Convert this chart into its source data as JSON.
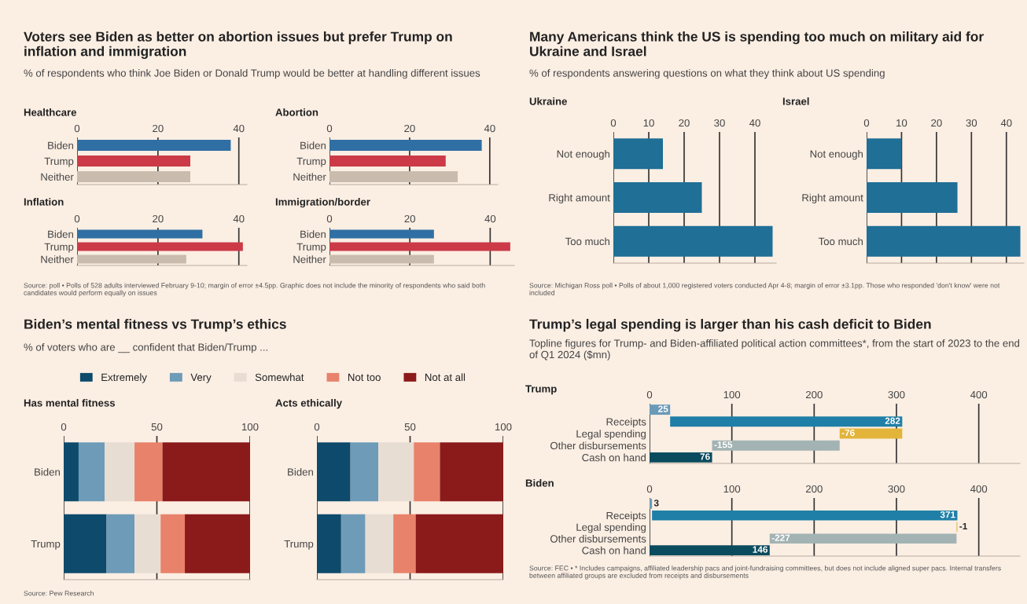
{
  "chart_data": [
    {
      "type": "bar",
      "orientation": "horizontal",
      "title": "Healthcare",
      "annotations": [
        "Voters see Biden as better on abortion issues but prefer Trump on inflation and immigration",
        "% of respondents who think Joe Biden or Donald Trump would be better at handling different issues",
        "Source: poll • Polls of 528 adults interviewed February 9-10; margin of error ±4.5pp. Graphic does not include the minority of respondents who said both candidates would perform equally on issues"
      ],
      "categories": [
        "Biden",
        "Trump",
        "Neither"
      ],
      "values": [
        38,
        28,
        28
      ],
      "colors": [
        "#2f6fa4",
        "#cc3a47",
        "#c9bcae"
      ],
      "xlim": [
        0,
        42
      ],
      "xticks": [
        0,
        20,
        40
      ],
      "grid": "x"
    },
    {
      "type": "bar",
      "orientation": "horizontal",
      "title": "Abortion",
      "categories": [
        "Biden",
        "Trump",
        "Neither"
      ],
      "values": [
        38,
        29,
        32
      ],
      "colors": [
        "#2f6fa4",
        "#cc3a47",
        "#c9bcae"
      ],
      "xlim": [
        0,
        42
      ],
      "xticks": [
        0,
        20,
        40
      ],
      "grid": "x"
    },
    {
      "type": "bar",
      "orientation": "horizontal",
      "title": "Inflation",
      "categories": [
        "Biden",
        "Trump",
        "Neither"
      ],
      "values": [
        31,
        41,
        27
      ],
      "colors": [
        "#2f6fa4",
        "#cc3a47",
        "#c9bcae"
      ],
      "xlim": [
        0,
        42
      ],
      "xticks": [
        0,
        20,
        40
      ],
      "grid": "x"
    },
    {
      "type": "bar",
      "orientation": "horizontal",
      "title": "Immigration/border",
      "categories": [
        "Biden",
        "Trump",
        "Neither"
      ],
      "values": [
        26,
        45,
        26
      ],
      "colors": [
        "#2f6fa4",
        "#cc3a47",
        "#c9bcae"
      ],
      "xlim": [
        0,
        46
      ],
      "xticks": [
        0,
        20,
        40
      ],
      "grid": "x"
    },
    {
      "type": "bar",
      "orientation": "horizontal",
      "title": "Ukraine",
      "annotations": [
        "Many Americans think the US is spending too much on military aid for Ukraine and Israel",
        "% of respondents answering questions on what they think about US spending",
        "Source: Michigan Ross poll • Polls of about 1,000 registered voters conducted Apr 4-8; margin of error ±3.1pp. Those who responded 'don't know' were not included"
      ],
      "categories": [
        "Not enough",
        "Right amount",
        "Too much"
      ],
      "values": [
        14,
        25,
        45
      ],
      "colors": [
        "#1f6f96",
        "#1f6f96",
        "#1f6f96"
      ],
      "xlim": [
        0,
        46
      ],
      "xticks": [
        0,
        10,
        20,
        30,
        40
      ],
      "grid": "x"
    },
    {
      "type": "bar",
      "orientation": "horizontal",
      "title": "Israel",
      "categories": [
        "Not enough",
        "Right amount",
        "Too much"
      ],
      "values": [
        10,
        26,
        44
      ],
      "colors": [
        "#1f6f96",
        "#1f6f96",
        "#1f6f96"
      ],
      "xlim": [
        0,
        45
      ],
      "xticks": [
        0,
        10,
        20,
        30,
        40
      ],
      "grid": "x"
    },
    {
      "type": "bar",
      "orientation": "horizontal",
      "stacked": true,
      "title": "Has mental fitness",
      "annotations": [
        "Biden’s mental fitness vs Trump’s ethics",
        "% of voters who are __ confident that Biden/Trump ...",
        "Source: Pew Research"
      ],
      "categories": [
        "Biden",
        "Trump"
      ],
      "series": [
        {
          "name": "Extremely",
          "color": "#0d4a6b",
          "values": [
            8,
            23
          ]
        },
        {
          "name": "Very",
          "color": "#6d9bb8",
          "values": [
            14,
            15
          ]
        },
        {
          "name": "Somewhat",
          "color": "#e8ddd3",
          "values": [
            16,
            14
          ]
        },
        {
          "name": "Not too",
          "color": "#e8826a",
          "values": [
            15,
            13
          ]
        },
        {
          "name": "Not at all",
          "color": "#8b1a1a",
          "values": [
            47,
            35
          ]
        }
      ],
      "xlim": [
        0,
        100
      ],
      "xticks": [
        0,
        50,
        100
      ],
      "grid": "x",
      "legend": "top"
    },
    {
      "type": "bar",
      "orientation": "horizontal",
      "stacked": true,
      "title": "Acts ethically",
      "categories": [
        "Biden",
        "Trump"
      ],
      "series": [
        {
          "color": "#0d4a6b",
          "values": [
            18,
            13
          ]
        },
        {
          "color": "#6d9bb8",
          "values": [
            15,
            13
          ]
        },
        {
          "color": "#e8ddd3",
          "values": [
            19,
            15
          ]
        },
        {
          "color": "#e8826a",
          "values": [
            14,
            12
          ]
        },
        {
          "color": "#8b1a1a",
          "values": [
            34,
            47
          ]
        }
      ],
      "xlim": [
        0,
        100
      ],
      "xticks": [
        0,
        50,
        100
      ],
      "grid": "x"
    },
    {
      "type": "bar",
      "orientation": "horizontal",
      "title": "Trump",
      "annotations": [
        "Trump’s legal spending is larger than his cash deficit to Biden",
        "Topline figures for Trump- and Biden-affiliated political action committees*, from the start of 2023 to the end of Q1 2024 ($mn)",
        "Source: FEC • * Includes campaigns, affiliated leadership pacs and joint-fundraising committees, but does not include aligned super pacs. Internal transfers between affiliated groups are excluded from receipts and disbursements"
      ],
      "categories": [
        null,
        "Receipts",
        "Legal spending",
        "Other disbursements",
        "Cash on hand"
      ],
      "values": [
        25,
        282,
        -76,
        -155,
        76
      ],
      "base": [
        0,
        25,
        307,
        231,
        0
      ],
      "colors": [
        "#6b9ab8",
        "#1f7fa6",
        "#e2b43a",
        "#a3b3b3",
        "#0b4b5e"
      ],
      "xlim": [
        0,
        450
      ],
      "xticks": [
        0,
        100,
        200,
        300,
        400
      ],
      "grid": "x",
      "data_labels": true
    },
    {
      "type": "bar",
      "orientation": "horizontal",
      "title": "Biden",
      "categories": [
        null,
        "Receipts",
        "Legal spending",
        "Other disbursements",
        "Cash on hand"
      ],
      "values": [
        3,
        371,
        -1,
        -227,
        146
      ],
      "base": [
        0,
        3,
        374,
        373,
        0
      ],
      "colors": [
        "#6b9ab8",
        "#1f7fa6",
        "#e2b43a",
        "#a3b3b3",
        "#0b4b5e"
      ],
      "xlim": [
        0,
        450
      ],
      "xticks": [
        0,
        100,
        200,
        300,
        400
      ],
      "grid": "x",
      "data_labels": true
    }
  ]
}
